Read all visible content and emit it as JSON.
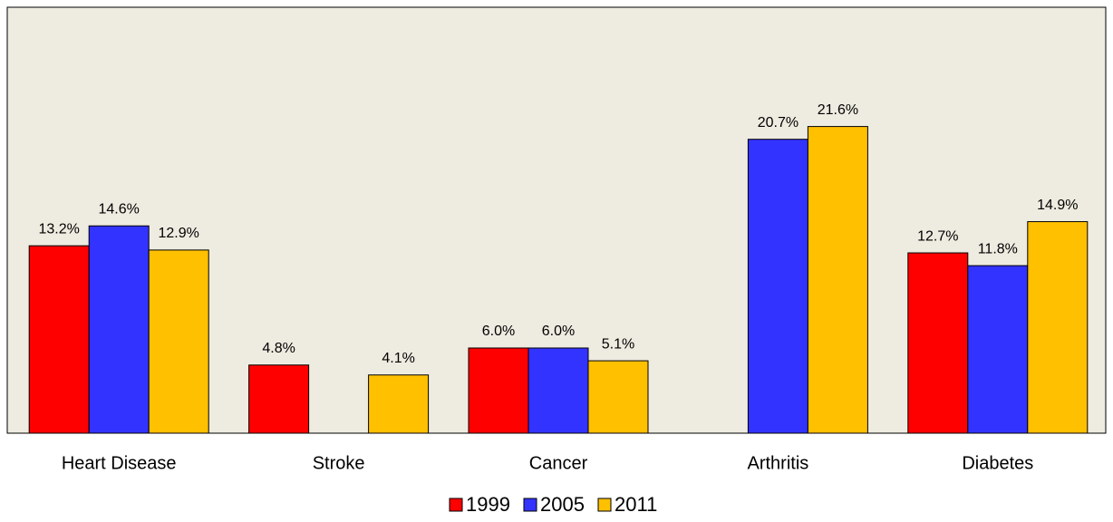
{
  "chart_data": {
    "type": "bar",
    "categories": [
      "Heart Disease",
      "Stroke",
      "Cancer",
      "Arthritis",
      "Diabetes"
    ],
    "series": [
      {
        "name": "1999",
        "color": "#ff0000",
        "values": [
          13.2,
          4.8,
          6.0,
          null,
          12.7
        ],
        "value_labels": [
          "13.2%",
          "4.8%",
          "6.0%",
          null,
          "12.7%"
        ]
      },
      {
        "name": "2005",
        "color": "#3333ff",
        "values": [
          14.6,
          null,
          6.0,
          20.7,
          11.8
        ],
        "value_labels": [
          "14.6%",
          null,
          "6.0%",
          "20.7%",
          "11.8%"
        ]
      },
      {
        "name": "2011",
        "color": "#ffc000",
        "values": [
          12.9,
          4.1,
          5.1,
          21.6,
          14.9
        ],
        "value_labels": [
          "12.9%",
          "4.1%",
          "5.1%",
          "21.6%",
          "14.9%"
        ]
      }
    ],
    "ylim": [
      0,
      30
    ],
    "legend": "bottom"
  }
}
